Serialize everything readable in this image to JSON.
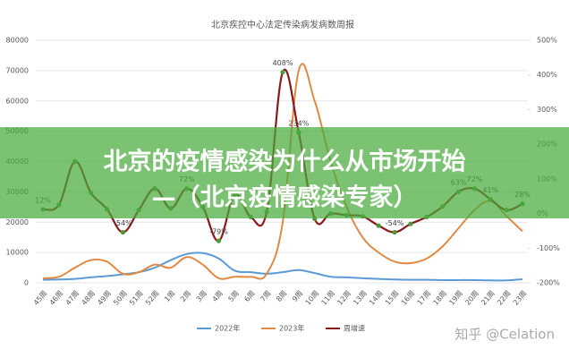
{
  "chart_data": {
    "type": "line",
    "title": "北京疾控中心法定传染病发病数周报",
    "categories": [
      "45周",
      "46周",
      "47周",
      "48周",
      "49周",
      "50周",
      "51周",
      "52周",
      "1周",
      "2周",
      "3周",
      "4周",
      "5周",
      "6周",
      "7周",
      "8周",
      "9周",
      "10周",
      "11周",
      "12周",
      "13周",
      "14周",
      "15周",
      "16周",
      "17周",
      "18周",
      "19周",
      "20周",
      "21周",
      "22周",
      "23周"
    ],
    "series": [
      {
        "name": "2022年",
        "color": "#5b9bd5",
        "values": [
          1000,
          1100,
          1300,
          1800,
          2200,
          2800,
          3500,
          5000,
          7500,
          9500,
          9800,
          8000,
          4000,
          3500,
          3000,
          3500,
          4200,
          3200,
          2000,
          1800,
          1500,
          1300,
          1100,
          1000,
          1000,
          900,
          900,
          900,
          800,
          800,
          1200
        ]
      },
      {
        "name": "2023年",
        "color": "#e08a45",
        "values": [
          1500,
          2000,
          5000,
          7500,
          7000,
          3000,
          3500,
          6000,
          5000,
          8500,
          6000,
          1500,
          2000,
          2000,
          3000,
          20000,
          70000,
          60000,
          40000,
          25000,
          15000,
          10000,
          7000,
          6500,
          8000,
          12000,
          18000,
          24000,
          27000,
          22000,
          17000
        ]
      },
      {
        "name": "周增速",
        "color": "#8b1a1a",
        "marker_color": "#4a9a3a",
        "axis": "y2",
        "values": [
          12,
          25,
          150,
          60,
          13,
          -54,
          10,
          72,
          15,
          72,
          20,
          -79,
          54,
          -10,
          5,
          408,
          234,
          -15,
          0,
          -5,
          -8,
          -35,
          -54,
          -30,
          -10,
          20,
          63,
          72,
          41,
          10,
          28
        ],
        "value_labels": [
          "12%",
          null,
          null,
          null,
          null,
          "-54%",
          null,
          null,
          null,
          "72%",
          null,
          "-79%",
          null,
          null,
          null,
          "408%",
          "234%",
          null,
          null,
          null,
          null,
          null,
          "-54%",
          null,
          null,
          null,
          "63%",
          "72%",
          "41%",
          null,
          "28%"
        ]
      }
    ],
    "ylim": [
      0,
      80000
    ],
    "yticks": [
      0,
      10000,
      20000,
      30000,
      40000,
      50000,
      60000,
      70000,
      80000
    ],
    "y2lim": [
      -200,
      500
    ],
    "y2ticks": [
      {
        "value": -200,
        "label": "-200%"
      },
      {
        "value": -100,
        "label": "-100%"
      },
      {
        "value": 0,
        "label": "0%"
      },
      {
        "value": 100,
        "label": "100%"
      },
      {
        "value": 200,
        "label": "200%"
      },
      {
        "value": 300,
        "label": "300%"
      },
      {
        "value": 400,
        "label": "400%"
      },
      {
        "value": 500,
        "label": "500%"
      }
    ],
    "grid": true,
    "legend": "bottom"
  },
  "overlay": {
    "headline_line1": "北京的疫情感染为什么从市场开始",
    "headline_line2": "—（北京疫情感染专家）"
  },
  "watermark": "知乎 @Celation"
}
